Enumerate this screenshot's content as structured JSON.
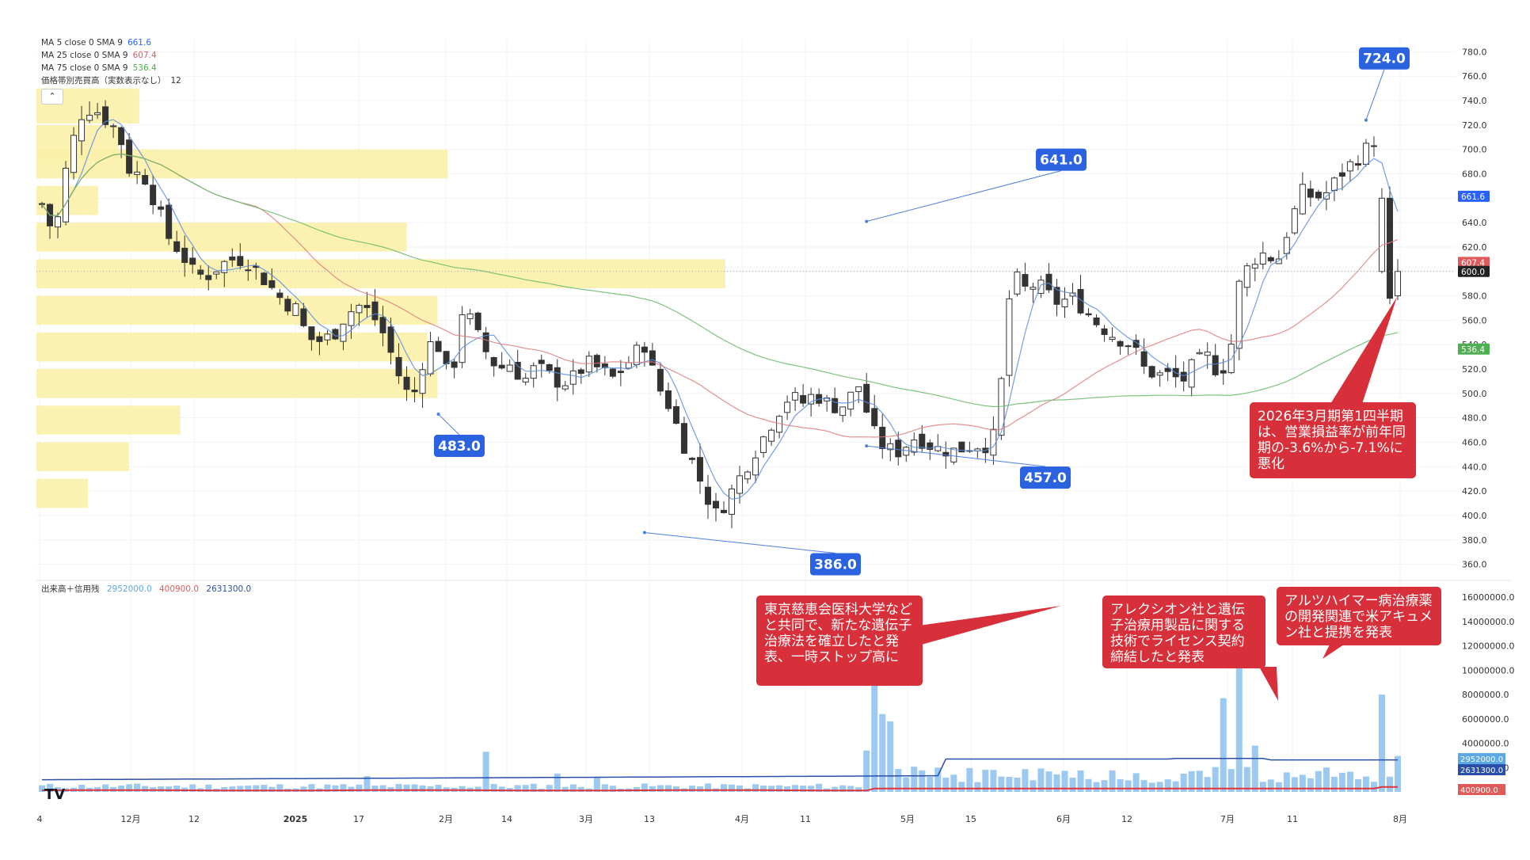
{
  "legend_top": [
    {
      "label": "MA 5 close 0 SMA 9",
      "value": "661.6",
      "color": "#2962ff"
    },
    {
      "label": "MA 25 close 0 SMA 9",
      "value": "607.4",
      "color": "#e05a5a"
    },
    {
      "label": "MA 75 close 0 SMA 9",
      "value": "536.4",
      "color": "#4caf50"
    },
    {
      "label": "価格帯別売買高（実数表示なし）",
      "value": "12",
      "color": "#333333"
    }
  ],
  "legend_volume": {
    "label": "出来高＋信用残",
    "values": [
      {
        "value": "2952000.0",
        "color": "#5aa9e6"
      },
      {
        "value": "400900.0",
        "color": "#e05a5a"
      },
      {
        "value": "2631300.0",
        "color": "#2a4fa8"
      }
    ]
  },
  "notes": [
    {
      "text": "東京慈恵会医科大学などと共同で、新たな遺伝子治療法を確立したと発表、一時ストップ高に"
    },
    {
      "text": "アレクシオン社と遺伝子治療用製品に関する技術でライセンス契約締結したと発表"
    },
    {
      "text": "アルツハイマー病治療薬の開発関連で米アキュメン社と提携を発表"
    },
    {
      "text": "2026年3月期第1四半期は、営業損益率が前年同期の-3.6%から-7.1%に悪化"
    }
  ],
  "chart_data": [
    {
      "type": "candlestick",
      "y_ticks": [
        "360.0",
        "380.0",
        "400.0",
        "420.0",
        "440.0",
        "460.0",
        "480.0",
        "500.0",
        "520.0",
        "540.0",
        "560.0",
        "580.0",
        "600.0",
        "620.0",
        "640.0",
        "660.0",
        "680.0",
        "700.0",
        "720.0",
        "740.0",
        "760.0",
        "780.0"
      ],
      "ylim": [
        350,
        790
      ],
      "x_ticks": [
        "4",
        "12月",
        "12",
        "2025",
        "17",
        "2月",
        "14",
        "3月",
        "13",
        "4月",
        "11",
        "5月",
        "15",
        "6月",
        "12",
        "7月",
        "11",
        "8月"
      ],
      "price_tags": [
        {
          "value": "661.6",
          "color": "#2962ff"
        },
        {
          "value": "607.4",
          "color": "#e05a5a"
        },
        {
          "value": "600.0",
          "color": "#222222"
        },
        {
          "value": "536.4",
          "color": "#4caf50"
        }
      ],
      "callouts": [
        {
          "label": "483.0",
          "price": 483.0
        },
        {
          "label": "386.0",
          "price": 386.0
        },
        {
          "label": "641.0",
          "price": 641.0
        },
        {
          "label": "457.0",
          "price": 457.0
        },
        {
          "label": "724.0",
          "price": 724.0
        }
      ],
      "last_close": 600.0,
      "volume_profile": [
        {
          "low": 720,
          "high": 750,
          "volume": 10
        },
        {
          "low": 690,
          "high": 720,
          "volume": 8
        },
        {
          "low": 675,
          "high": 700,
          "volume": 40
        },
        {
          "low": 645,
          "high": 670,
          "volume": 6
        },
        {
          "low": 615,
          "high": 640,
          "volume": 36
        },
        {
          "low": 585,
          "high": 610,
          "volume": 67
        },
        {
          "low": 555,
          "high": 580,
          "volume": 39
        },
        {
          "low": 525,
          "high": 550,
          "volume": 38
        },
        {
          "low": 495,
          "high": 520,
          "volume": 39
        },
        {
          "low": 465,
          "high": 490,
          "volume": 14
        },
        {
          "low": 435,
          "high": 460,
          "volume": 9
        },
        {
          "low": 405,
          "high": 430,
          "volume": 5
        }
      ]
    },
    {
      "type": "bar",
      "series_name": "出来高＋信用残",
      "y_ticks": [
        "2000000.0",
        "4000000.0",
        "6000000.0",
        "8000000.0",
        "10000000.0",
        "12000000.0",
        "14000000.0",
        "16000000.0"
      ],
      "ylim": [
        0,
        16600000
      ],
      "value_tags": [
        {
          "value": "2952000.0",
          "color": "#5aa9e6"
        },
        {
          "value": "2631300.0",
          "color": "#2a4fa8"
        },
        {
          "value": "400900.0",
          "color": "#e05a5a"
        }
      ]
    }
  ]
}
